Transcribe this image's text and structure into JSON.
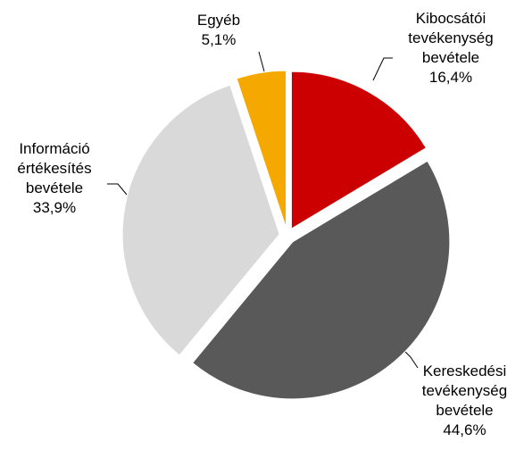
{
  "chart_data": {
    "type": "pie",
    "categories": [
      "Kibocsátói tevékenység bevétele",
      "Kereskedési tevékenység bevétele",
      "Információ értékesítés bevétele",
      "Egyéb"
    ],
    "values": [
      16.4,
      44.6,
      33.9,
      5.1
    ],
    "value_labels": [
      "16,4%",
      "44,6%",
      "33,9%",
      "5,1%"
    ],
    "colors": [
      "#cc0000",
      "#595959",
      "#d9d9d9",
      "#f5a800"
    ]
  }
}
